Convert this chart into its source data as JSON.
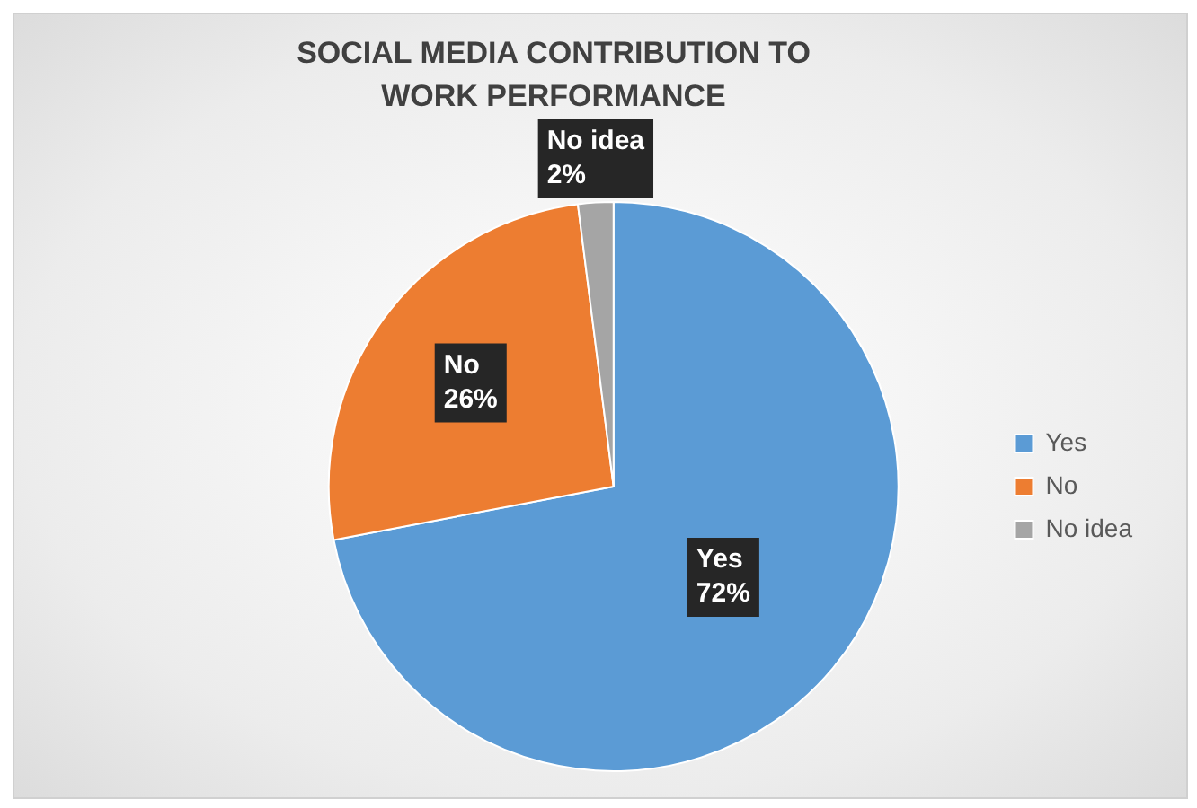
{
  "chart_data": {
    "type": "pie",
    "title": "SOCIAL MEDIA CONTRIBUTION TO WORK PERFORMANCE",
    "categories": [
      "Yes",
      "No",
      "No idea"
    ],
    "values": [
      72,
      26,
      2
    ],
    "colors": [
      "#5b9bd5",
      "#ed7d31",
      "#a5a5a5"
    ],
    "value_labels": [
      "72%",
      "26%",
      "2%"
    ],
    "legend": "right"
  }
}
